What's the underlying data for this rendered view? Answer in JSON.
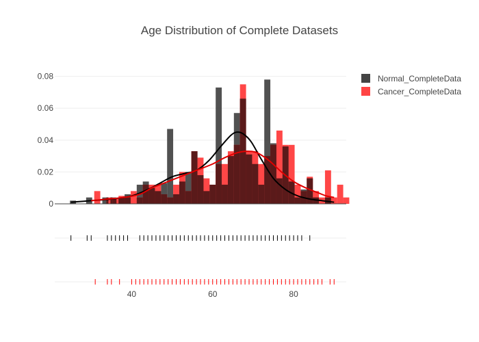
{
  "chart_data": {
    "type": "bar",
    "title": "Age Distribution of Complete Datasets",
    "xlabel": "",
    "ylabel": "",
    "xlim": [
      21,
      93
    ],
    "ylim": [
      0,
      0.085
    ],
    "bin_width": 1.5,
    "x_ticks": [
      40,
      60,
      80
    ],
    "y_ticks": [
      0,
      0.02,
      0.04,
      0.06,
      0.08
    ],
    "y_tick_labels": [
      "0",
      "0.02",
      "0.04",
      "0.06",
      "0.08"
    ],
    "legend_position": "top-right",
    "grid": true,
    "series": [
      {
        "name": "Normal_CompleteData",
        "color": "#333333",
        "bars": [
          {
            "x": 25.5,
            "y": 0.002
          },
          {
            "x": 29.5,
            "y": 0.004
          },
          {
            "x": 33.5,
            "y": 0.004
          },
          {
            "x": 35.5,
            "y": 0.004
          },
          {
            "x": 37.5,
            "y": 0.004
          },
          {
            "x": 39.0,
            "y": 0.006
          },
          {
            "x": 42.0,
            "y": 0.012
          },
          {
            "x": 43.5,
            "y": 0.014
          },
          {
            "x": 45.0,
            "y": 0.01
          },
          {
            "x": 46.5,
            "y": 0.008
          },
          {
            "x": 48.0,
            "y": 0.013
          },
          {
            "x": 49.5,
            "y": 0.047
          },
          {
            "x": 51.0,
            "y": 0.006
          },
          {
            "x": 52.5,
            "y": 0.014
          },
          {
            "x": 54.0,
            "y": 0.02
          },
          {
            "x": 55.5,
            "y": 0.033
          },
          {
            "x": 57.0,
            "y": 0.018
          },
          {
            "x": 58.5,
            "y": 0.008
          },
          {
            "x": 60.0,
            "y": 0.012
          },
          {
            "x": 61.5,
            "y": 0.073
          },
          {
            "x": 63.0,
            "y": 0.012
          },
          {
            "x": 64.5,
            "y": 0.03
          },
          {
            "x": 66.0,
            "y": 0.057
          },
          {
            "x": 67.5,
            "y": 0.066
          },
          {
            "x": 69.0,
            "y": 0.031
          },
          {
            "x": 70.5,
            "y": 0.025
          },
          {
            "x": 72.0,
            "y": 0.012
          },
          {
            "x": 73.5,
            "y": 0.078
          },
          {
            "x": 75.0,
            "y": 0.038
          },
          {
            "x": 76.5,
            "y": 0.016
          },
          {
            "x": 78.0,
            "y": 0.036
          },
          {
            "x": 79.5,
            "y": 0.014
          },
          {
            "x": 81.0,
            "y": 0.004
          },
          {
            "x": 82.5,
            "y": 0.009
          },
          {
            "x": 84.0,
            "y": 0.016
          },
          {
            "x": 85.5,
            "y": 0.004
          },
          {
            "x": 88.5,
            "y": 0.004
          }
        ],
        "rug": [
          25,
          29,
          30,
          34,
          35,
          36,
          37,
          38,
          39,
          42,
          43,
          44,
          45,
          46,
          47,
          48,
          49,
          50,
          51,
          52,
          53,
          54,
          55,
          56,
          57,
          58,
          59,
          60,
          61,
          62,
          63,
          64,
          65,
          66,
          67,
          68,
          69,
          70,
          71,
          72,
          73,
          74,
          75,
          76,
          77,
          78,
          79,
          80,
          81,
          82,
          84
        ],
        "kde": [
          [
            25,
            0.001
          ],
          [
            30,
            0.002
          ],
          [
            35,
            0.003
          ],
          [
            40,
            0.005
          ],
          [
            44,
            0.009
          ],
          [
            47,
            0.013
          ],
          [
            50,
            0.017
          ],
          [
            53,
            0.019
          ],
          [
            56,
            0.021
          ],
          [
            59,
            0.027
          ],
          [
            62,
            0.036
          ],
          [
            64.5,
            0.043
          ],
          [
            66,
            0.045
          ],
          [
            67.5,
            0.044
          ],
          [
            69.5,
            0.039
          ],
          [
            72,
            0.028
          ],
          [
            75,
            0.016
          ],
          [
            78,
            0.009
          ],
          [
            81,
            0.005
          ],
          [
            84,
            0.003
          ],
          [
            87,
            0.002
          ],
          [
            90,
            0.001
          ]
        ]
      },
      {
        "name": "Cancer_CompleteData",
        "color": "#ff3333",
        "bars": [
          {
            "x": 31.5,
            "y": 0.008
          },
          {
            "x": 34.5,
            "y": 0.004
          },
          {
            "x": 36.0,
            "y": 0.003
          },
          {
            "x": 37.5,
            "y": 0.005
          },
          {
            "x": 39.0,
            "y": 0.004
          },
          {
            "x": 40.5,
            "y": 0.008
          },
          {
            "x": 42.0,
            "y": 0.004
          },
          {
            "x": 43.5,
            "y": 0.012
          },
          {
            "x": 45.0,
            "y": 0.012
          },
          {
            "x": 46.5,
            "y": 0.012
          },
          {
            "x": 48.0,
            "y": 0.006
          },
          {
            "x": 49.5,
            "y": 0.004
          },
          {
            "x": 51.0,
            "y": 0.012
          },
          {
            "x": 52.5,
            "y": 0.02
          },
          {
            "x": 54.0,
            "y": 0.008
          },
          {
            "x": 55.5,
            "y": 0.033
          },
          {
            "x": 57.0,
            "y": 0.029
          },
          {
            "x": 58.5,
            "y": 0.016
          },
          {
            "x": 60.0,
            "y": 0.012
          },
          {
            "x": 61.5,
            "y": 0.025
          },
          {
            "x": 63.0,
            "y": 0.025
          },
          {
            "x": 64.5,
            "y": 0.033
          },
          {
            "x": 66.0,
            "y": 0.037
          },
          {
            "x": 67.5,
            "y": 0.075
          },
          {
            "x": 69.0,
            "y": 0.033
          },
          {
            "x": 70.5,
            "y": 0.033
          },
          {
            "x": 72.0,
            "y": 0.025
          },
          {
            "x": 73.5,
            "y": 0.03
          },
          {
            "x": 75.0,
            "y": 0.037
          },
          {
            "x": 76.5,
            "y": 0.046
          },
          {
            "x": 78.0,
            "y": 0.037
          },
          {
            "x": 79.5,
            "y": 0.037
          },
          {
            "x": 81.0,
            "y": 0.012
          },
          {
            "x": 82.5,
            "y": 0.008
          },
          {
            "x": 84.0,
            "y": 0.017
          },
          {
            "x": 85.5,
            "y": 0.008
          },
          {
            "x": 87.0,
            "y": 0.004
          },
          {
            "x": 88.5,
            "y": 0.021
          },
          {
            "x": 90.0,
            "y": 0.004
          },
          {
            "x": 91.5,
            "y": 0.012
          },
          {
            "x": 93.0,
            "y": 0.004
          }
        ],
        "rug": [
          31,
          34,
          35,
          37,
          40,
          41,
          42,
          43,
          44,
          45,
          46,
          47,
          48,
          49,
          50,
          51,
          52,
          53,
          54,
          55,
          56,
          57,
          58,
          59,
          60,
          61,
          62,
          63,
          64,
          65,
          66,
          67,
          68,
          69,
          70,
          71,
          72,
          73,
          74,
          75,
          76,
          77,
          78,
          79,
          80,
          81,
          82,
          83,
          84,
          85,
          86,
          87,
          89,
          90
        ],
        "kde": [
          [
            30,
            0.002
          ],
          [
            34,
            0.003
          ],
          [
            38,
            0.004
          ],
          [
            42,
            0.006
          ],
          [
            45,
            0.01
          ],
          [
            48,
            0.013
          ],
          [
            52,
            0.017
          ],
          [
            56,
            0.021
          ],
          [
            60,
            0.025
          ],
          [
            63,
            0.029
          ],
          [
            66,
            0.032
          ],
          [
            68.5,
            0.033
          ],
          [
            71,
            0.032
          ],
          [
            74,
            0.027
          ],
          [
            77,
            0.02
          ],
          [
            80,
            0.014
          ],
          [
            83,
            0.01
          ],
          [
            86,
            0.007
          ],
          [
            88,
            0.005
          ],
          [
            90,
            0.004
          ]
        ]
      }
    ]
  }
}
